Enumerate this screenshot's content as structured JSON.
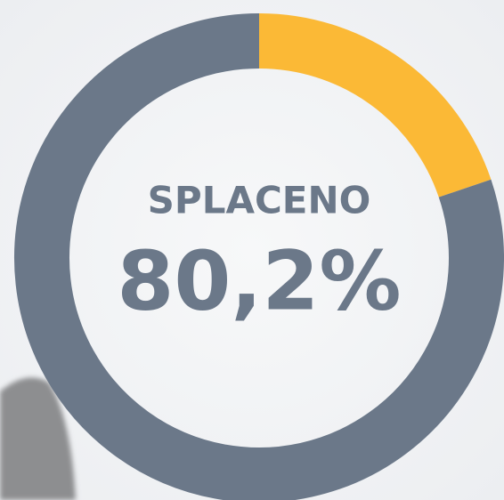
{
  "chart_data": {
    "type": "donut",
    "label": "SPLACENO",
    "values": [
      19.8,
      80.2
    ],
    "value_labels": [
      null,
      "80,2%"
    ],
    "colors": [
      "#fbb936",
      "#6b7889"
    ]
  }
}
